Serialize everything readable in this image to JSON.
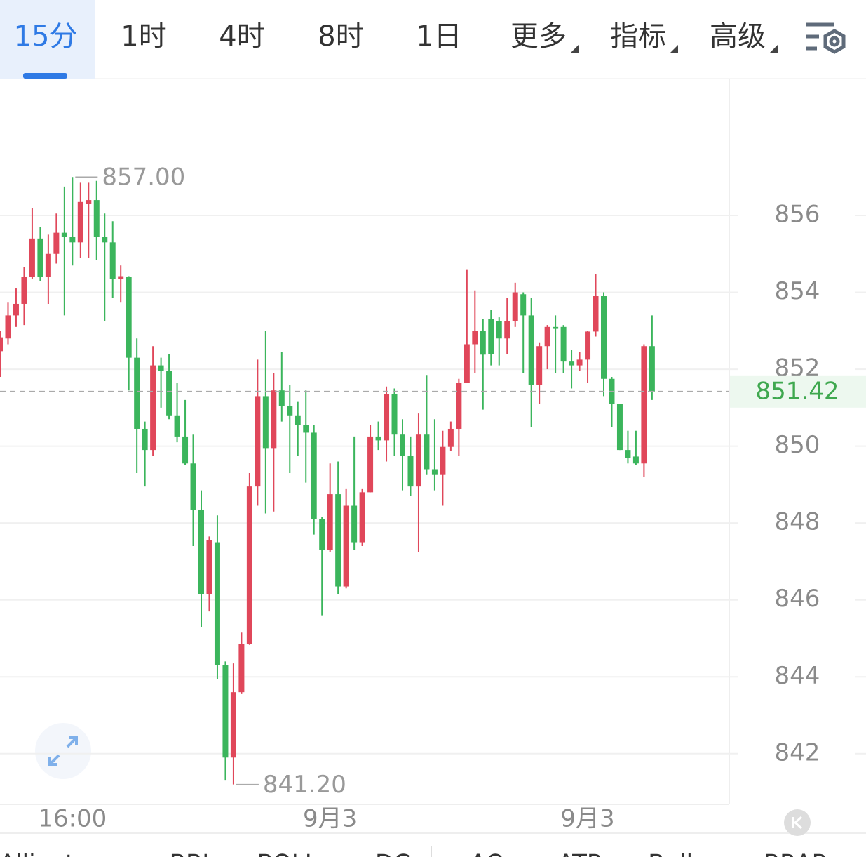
{
  "tabs": [
    "15分",
    "1时",
    "4时",
    "8时",
    "1日",
    "更多",
    "指标",
    "高级"
  ],
  "selected_tab": 0,
  "indicators": [
    "Alligator",
    "BBI",
    "BOLL",
    "DC",
    "AO",
    "ATR",
    "Bulls",
    "BRAR"
  ],
  "chart_data": {
    "type": "candlestick",
    "up_color": "#e0475a",
    "down_color": "#3bb55c",
    "categories": [
      null,
      null,
      null,
      null,
      null,
      null,
      null,
      null,
      null,
      "16:00",
      null,
      null,
      null,
      null,
      null,
      null,
      null,
      null,
      null,
      null,
      null,
      null,
      null,
      null,
      null,
      null,
      null,
      null,
      null,
      null,
      null,
      null,
      null,
      null,
      null,
      null,
      null,
      null,
      null,
      null,
      null,
      "9月3",
      null,
      null,
      null,
      null,
      null,
      null,
      null,
      null,
      null,
      null,
      null,
      null,
      null,
      null,
      null,
      null,
      null,
      null,
      null,
      null,
      null,
      null,
      null,
      null,
      null,
      null,
      null,
      null,
      null,
      null,
      null,
      "9月3",
      null,
      null,
      null,
      null,
      null,
      null,
      null,
      null
    ],
    "open": [
      852.47,
      852.8,
      853.4,
      853.7,
      854.4,
      855.4,
      854.4,
      855.0,
      855.55,
      855.45,
      855.3,
      856.3,
      856.4,
      855.45,
      855.3,
      854.35,
      854.4,
      852.3,
      850.45,
      849.9,
      852.1,
      851.95,
      850.8,
      850.25,
      849.55,
      848.35,
      846.15,
      847.5,
      844.3,
      841.9,
      843.6,
      844.85,
      848.95,
      851.3,
      849.95,
      851.45,
      851.05,
      850.8,
      850.55,
      850.35,
      848.1,
      847.3,
      848.75,
      846.35,
      848.45,
      847.5,
      848.8,
      850.25,
      850.15,
      851.35,
      850.3,
      849.75,
      848.95,
      850.3,
      849.4,
      849.25,
      849.98,
      850.45,
      851.65,
      852.65,
      853.0,
      853.3,
      853.25,
      852.8,
      853.25,
      853.95,
      853.4,
      851.6,
      852.6,
      853.1,
      853.1,
      852.2,
      852.1,
      852.25,
      852.98,
      853.9,
      851.75,
      851.1,
      849.9,
      849.73,
      849.55,
      852.6
    ],
    "high": [
      853.0,
      853.75,
      854.1,
      854.65,
      856.2,
      855.7,
      855.5,
      856.05,
      856.75,
      857.0,
      856.85,
      856.85,
      856.9,
      856.05,
      855.85,
      854.7,
      854.42,
      852.8,
      850.64,
      852.6,
      852.3,
      852.4,
      851.65,
      851.2,
      850.3,
      848.85,
      847.65,
      848.2,
      844.4,
      844.35,
      845.15,
      849.3,
      852.25,
      853.0,
      851.9,
      852.45,
      851.6,
      851.15,
      851.45,
      850.55,
      848.15,
      849.55,
      849.6,
      848.9,
      850.25,
      848.9,
      850.55,
      850.64,
      851.55,
      851.5,
      850.7,
      850.25,
      850.85,
      851.85,
      850.7,
      850.4,
      850.64,
      851.75,
      854.6,
      854.05,
      853.3,
      853.55,
      853.35,
      853.85,
      854.25,
      854.0,
      853.85,
      852.7,
      853.15,
      853.4,
      853.15,
      852.5,
      852.45,
      853.0,
      854.48,
      854.0,
      851.8,
      851.1,
      850.4,
      850.4,
      852.65,
      853.4
    ],
    "low": [
      851.8,
      852.65,
      853.1,
      853.15,
      854.35,
      854.3,
      853.7,
      854.75,
      853.4,
      854.7,
      854.9,
      854.9,
      854.85,
      853.25,
      853.85,
      853.75,
      851.45,
      849.3,
      848.95,
      849.75,
      851.0,
      850.7,
      850.1,
      849.5,
      847.4,
      845.3,
      845.7,
      843.95,
      841.3,
      841.2,
      843.55,
      844.83,
      848.45,
      848.25,
      848.3,
      850.64,
      849.3,
      849.75,
      849.05,
      847.7,
      845.6,
      847.25,
      846.15,
      846.3,
      847.3,
      847.4,
      848.8,
      849.9,
      849.6,
      849.75,
      848.85,
      848.7,
      847.25,
      849.25,
      848.85,
      848.45,
      849.87,
      849.75,
      851.65,
      851.9,
      850.95,
      852.1,
      852.1,
      852.4,
      853.1,
      851.9,
      850.5,
      851.1,
      852.0,
      851.9,
      851.9,
      851.5,
      851.95,
      851.65,
      852.85,
      851.3,
      850.5,
      849.9,
      849.55,
      849.5,
      849.2,
      851.2
    ],
    "close": [
      852.83,
      853.4,
      853.7,
      854.4,
      855.4,
      854.4,
      855.0,
      855.55,
      855.45,
      855.3,
      856.35,
      856.4,
      855.45,
      855.3,
      854.35,
      854.42,
      852.3,
      850.45,
      849.9,
      852.1,
      851.95,
      850.8,
      850.25,
      849.55,
      848.35,
      846.15,
      847.55,
      844.3,
      841.9,
      843.6,
      844.85,
      848.95,
      851.3,
      849.95,
      851.45,
      851.05,
      850.8,
      850.55,
      850.35,
      848.1,
      847.3,
      848.75,
      846.35,
      848.45,
      847.5,
      848.8,
      850.25,
      850.15,
      851.35,
      850.3,
      849.75,
      848.95,
      850.3,
      849.4,
      849.25,
      849.98,
      850.45,
      851.65,
      852.65,
      853.0,
      852.38,
      852.4,
      852.8,
      853.25,
      854.0,
      853.4,
      851.6,
      852.6,
      853.1,
      853.05,
      852.2,
      852.1,
      852.25,
      852.98,
      853.9,
      851.75,
      851.1,
      849.9,
      849.7,
      849.55,
      852.6,
      851.42
    ],
    "ylim": [
      840.7,
      859.56
    ],
    "yticks": [
      842,
      844,
      846,
      848,
      850,
      852,
      854,
      856
    ],
    "grid": true,
    "last_price": 851.42,
    "annotations": [
      {
        "value": 857,
        "label": "857.00"
      },
      {
        "value": 841.2,
        "label": "841.20"
      }
    ]
  }
}
